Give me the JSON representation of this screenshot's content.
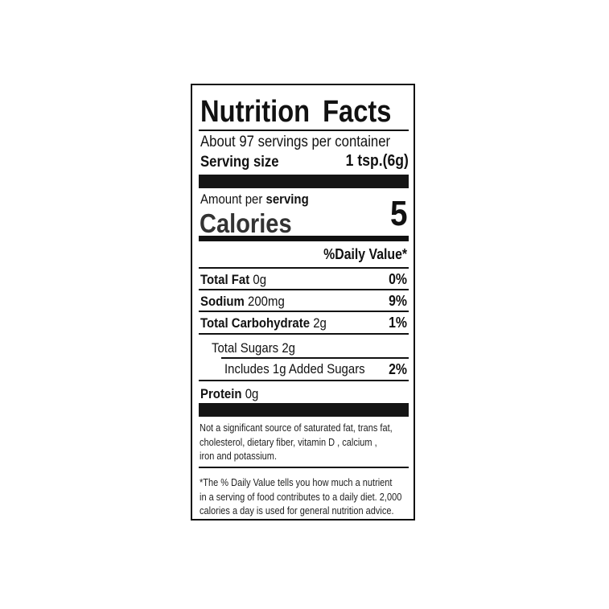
{
  "title": "Nutrition Facts",
  "servings_per_container": "About 97 servings per container",
  "serving_size": {
    "label": "Serving size",
    "value": "1 tsp.(6g)"
  },
  "amount_per_serving": {
    "prefix": "Amount per ",
    "bold": "serving"
  },
  "calories": {
    "label": "Calories",
    "value": "5"
  },
  "daily_value_header": "%Daily Value*",
  "nutrients": [
    {
      "name": "Total Fat",
      "amount": "0g",
      "dv": "0%"
    },
    {
      "name": "Sodium",
      "amount": "200mg",
      "dv": "9%"
    },
    {
      "name": "Total Carbohydrate",
      "amount": "2g",
      "dv": "1%"
    },
    {
      "name": "Total Sugars",
      "amount": "2g",
      "dv": ""
    },
    {
      "name": "Includes 1g Added Sugars",
      "amount": "",
      "dv": "2%"
    },
    {
      "name": "Protein",
      "amount": "0g",
      "dv": ""
    }
  ],
  "footnote_1": [
    "Not a significant source of saturated fat, trans fat,",
    "cholesterol, dietary fiber, vitamin D , calcium ,",
    "iron and potassium."
  ],
  "footnote_2": [
    "*The % Daily Value tells you how much a nutrient",
    "in a serving of food contributes to a daily diet. 2,000",
    "calories a day is used for general nutrition advice."
  ]
}
